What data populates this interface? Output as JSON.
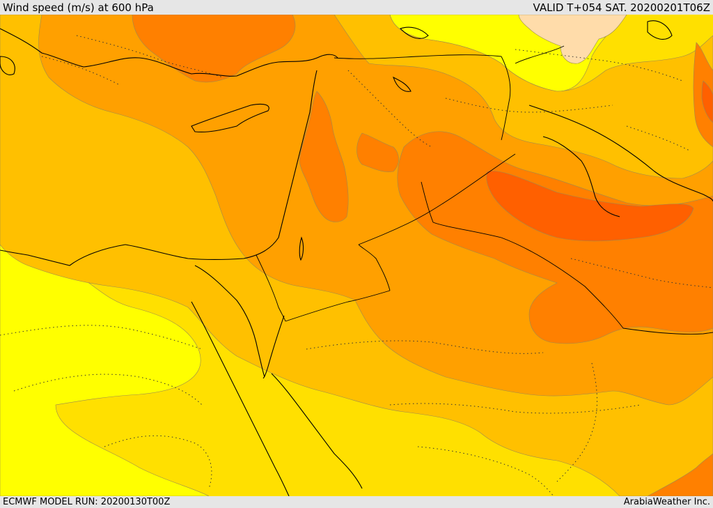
{
  "header": {
    "title": "Wind speed (m/s) at 600 hPa",
    "valid": "VALID T+054 SAT. 20200201T06Z"
  },
  "footer": {
    "model_run": "ECMWF MODEL RUN: 20200130T00Z",
    "brand": "ArabiaWeather Inc."
  },
  "map": {
    "field": "wind speed",
    "level": "600 hPa",
    "units": "m/s",
    "colors": {
      "pale_yellow": "#ffff00",
      "yellow": "#ffe000",
      "light_orange": "#ffc000",
      "orange": "#ffa000",
      "dark_orange": "#ff8000",
      "red_orange": "#ff6000",
      "peach": "#ffdcaa",
      "coast": "#000000"
    }
  }
}
